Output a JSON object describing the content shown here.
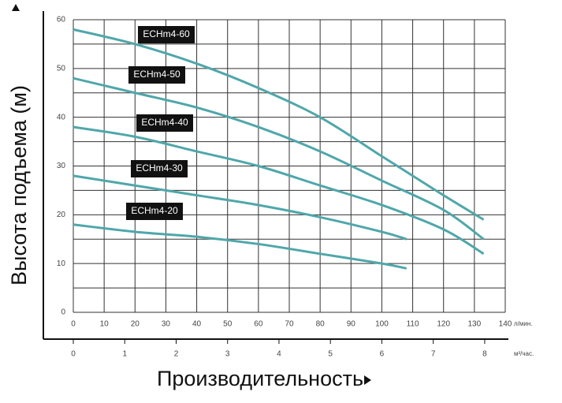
{
  "chart_data": {
    "type": "line",
    "y_label": "Высота подъема (м)",
    "x_label": "Производительность",
    "x_unit": "л/мин.",
    "x2_unit": "м³/час.",
    "xlim": [
      0,
      140
    ],
    "xticks": [
      0,
      10,
      20,
      30,
      40,
      50,
      60,
      70,
      80,
      90,
      100,
      110,
      120,
      130,
      140
    ],
    "x2lim": [
      0,
      8.4
    ],
    "x2ticks": [
      0,
      1,
      2,
      3,
      4,
      5,
      6,
      7,
      8
    ],
    "ylim": [
      0,
      60
    ],
    "yticks": [
      0,
      10,
      20,
      30,
      40,
      50,
      60
    ],
    "yminorticks": [
      5,
      15,
      25,
      35,
      45,
      55
    ],
    "grid": true,
    "series": [
      {
        "name": "ECHm4-60",
        "color": "#4fa7aa",
        "x": [
          0,
          20,
          40,
          60,
          80,
          100,
          110,
          120,
          133
        ],
        "values": [
          58,
          55,
          51,
          46,
          40,
          32,
          28,
          24,
          19
        ]
      },
      {
        "name": "ECHm4-50",
        "color": "#4fa7aa",
        "x": [
          0,
          20,
          40,
          60,
          80,
          100,
          120,
          133
        ],
        "values": [
          48,
          45,
          42,
          38,
          33,
          27,
          21,
          15
        ]
      },
      {
        "name": "ECHm4-40",
        "color": "#4fa7aa",
        "x": [
          0,
          20,
          40,
          60,
          80,
          100,
          120,
          133
        ],
        "values": [
          38,
          36,
          33,
          30,
          26,
          22,
          17,
          12
        ]
      },
      {
        "name": "ECHm4-30",
        "color": "#4fa7aa",
        "x": [
          0,
          20,
          40,
          60,
          80,
          100,
          108
        ],
        "values": [
          28,
          26,
          24,
          22,
          19.5,
          16.5,
          15
        ]
      },
      {
        "name": "ECHm4-20",
        "color": "#4fa7aa",
        "x": [
          0,
          20,
          40,
          60,
          80,
          100,
          108
        ],
        "values": [
          18,
          16.5,
          15.5,
          14,
          12,
          10,
          9
        ]
      }
    ]
  }
}
